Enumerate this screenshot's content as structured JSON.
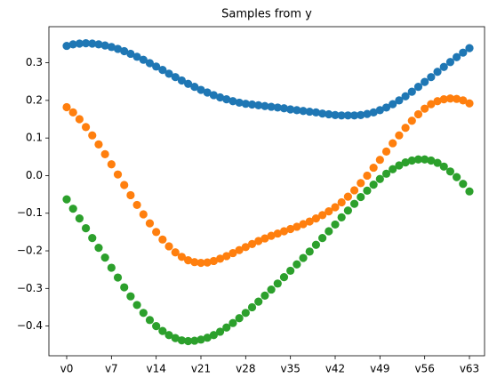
{
  "chart_data": {
    "type": "scatter",
    "title": "Samples from y",
    "categories": [
      "v0",
      null,
      null,
      null,
      null,
      null,
      null,
      "v7",
      null,
      null,
      null,
      null,
      null,
      null,
      "v14",
      null,
      null,
      null,
      null,
      null,
      null,
      "v21",
      null,
      null,
      null,
      null,
      null,
      null,
      "v28",
      null,
      null,
      null,
      null,
      null,
      null,
      "v35",
      null,
      null,
      null,
      null,
      null,
      null,
      "v42",
      null,
      null,
      null,
      null,
      null,
      null,
      "v49",
      null,
      null,
      null,
      null,
      null,
      null,
      "v56",
      null,
      null,
      null,
      null,
      null,
      null,
      "v63"
    ],
    "series": [
      {
        "color": "#1f77b4",
        "values": [
          0.345,
          0.349,
          0.351,
          0.352,
          0.351,
          0.349,
          0.346,
          0.342,
          0.337,
          0.331,
          0.324,
          0.316,
          0.308,
          0.299,
          0.29,
          0.281,
          0.271,
          0.262,
          0.253,
          0.244,
          0.236,
          0.228,
          0.221,
          0.214,
          0.208,
          0.203,
          0.198,
          0.194,
          0.191,
          0.189,
          0.187,
          0.185,
          0.183,
          0.181,
          0.179,
          0.176,
          0.174,
          0.172,
          0.17,
          0.168,
          0.165,
          0.163,
          0.161,
          0.16,
          0.16,
          0.16,
          0.161,
          0.164,
          0.168,
          0.174,
          0.181,
          0.19,
          0.2,
          0.211,
          0.223,
          0.236,
          0.249,
          0.262,
          0.276,
          0.289,
          0.302,
          0.315,
          0.327,
          0.339
        ]
      },
      {
        "color": "#ff7f0e",
        "values": [
          0.182,
          0.168,
          0.15,
          0.129,
          0.107,
          0.083,
          0.057,
          0.03,
          0.003,
          -0.025,
          -0.052,
          -0.078,
          -0.103,
          -0.127,
          -0.15,
          -0.17,
          -0.188,
          -0.204,
          -0.216,
          -0.225,
          -0.23,
          -0.232,
          -0.231,
          -0.227,
          -0.221,
          -0.214,
          -0.206,
          -0.198,
          -0.19,
          -0.182,
          -0.174,
          -0.167,
          -0.16,
          -0.154,
          -0.148,
          -0.142,
          -0.136,
          -0.129,
          -0.122,
          -0.114,
          -0.105,
          -0.095,
          -0.084,
          -0.071,
          -0.056,
          -0.039,
          -0.02,
          0.0,
          0.021,
          0.042,
          0.064,
          0.086,
          0.107,
          0.127,
          0.146,
          0.163,
          0.178,
          0.19,
          0.198,
          0.203,
          0.205,
          0.204,
          0.2,
          0.192
        ]
      },
      {
        "color": "#2ca02c",
        "values": [
          -0.063,
          -0.088,
          -0.114,
          -0.14,
          -0.166,
          -0.192,
          -0.218,
          -0.245,
          -0.271,
          -0.297,
          -0.321,
          -0.344,
          -0.365,
          -0.384,
          -0.4,
          -0.413,
          -0.424,
          -0.432,
          -0.438,
          -0.44,
          -0.439,
          -0.436,
          -0.431,
          -0.424,
          -0.415,
          -0.404,
          -0.392,
          -0.379,
          -0.365,
          -0.35,
          -0.335,
          -0.319,
          -0.303,
          -0.287,
          -0.27,
          -0.253,
          -0.236,
          -0.219,
          -0.202,
          -0.184,
          -0.166,
          -0.148,
          -0.13,
          -0.111,
          -0.093,
          -0.075,
          -0.057,
          -0.04,
          -0.024,
          -0.009,
          0.005,
          0.017,
          0.027,
          0.035,
          0.04,
          0.043,
          0.043,
          0.04,
          0.034,
          0.024,
          0.011,
          -0.004,
          -0.022,
          -0.042
        ]
      }
    ],
    "ylim": [
      -0.479,
      0.396
    ],
    "yticks": [
      {
        "value": -0.4,
        "label": "−0.4"
      },
      {
        "value": -0.3,
        "label": "−0.3"
      },
      {
        "value": -0.2,
        "label": "−0.2"
      },
      {
        "value": -0.1,
        "label": "−0.1"
      },
      {
        "value": 0,
        "label": "0.0"
      },
      0.1,
      0.2,
      0.3
    ]
  }
}
